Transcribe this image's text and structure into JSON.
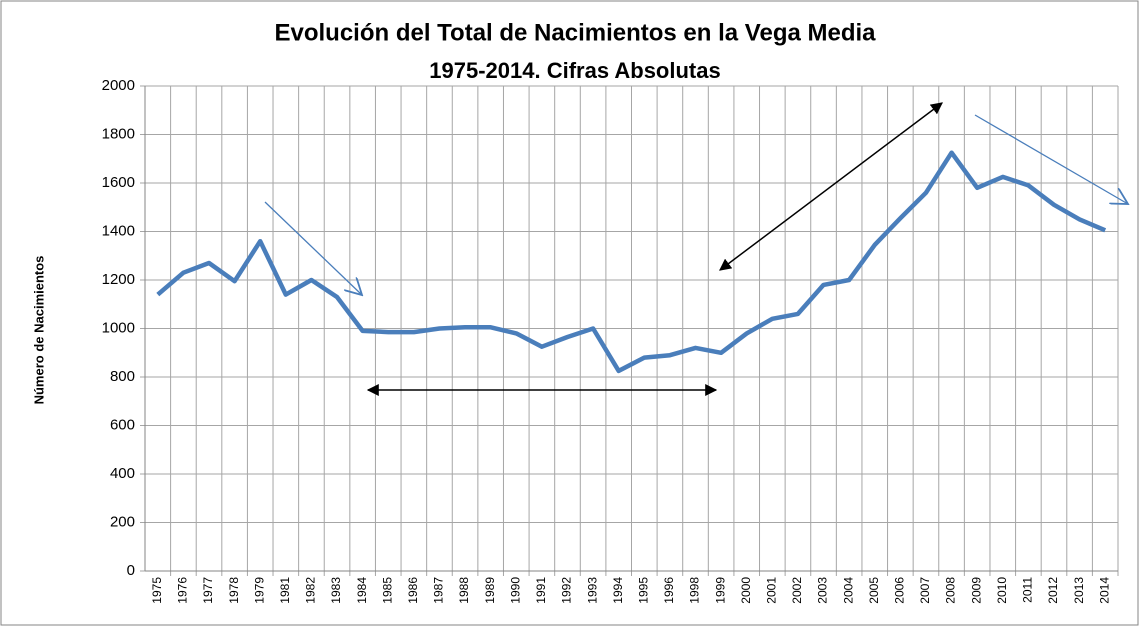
{
  "chart_data": {
    "type": "line",
    "title": "Evolución del Total de Nacimientos en la Vega Media",
    "subtitle": "1975-2014. Cifras Absolutas",
    "y_label": "Número de Nacimientos",
    "categories": [
      "1975",
      "1976",
      "1977",
      "1978",
      "1979",
      "1981",
      "1982",
      "1983",
      "1984",
      "1985",
      "1986",
      "1987",
      "1988",
      "1989",
      "1990",
      "1991",
      "1992",
      "1993",
      "1994",
      "1995",
      "1996",
      "1998",
      "1999",
      "2000",
      "2001",
      "2002",
      "2003",
      "2004",
      "2005",
      "2006",
      "2007",
      "2008",
      "2009",
      "2010",
      "2011",
      "2012",
      "2013",
      "2014"
    ],
    "values": [
      1140,
      1230,
      1270,
      1195,
      1360,
      1140,
      1200,
      1130,
      990,
      985,
      985,
      1000,
      1005,
      1005,
      980,
      925,
      965,
      1000,
      825,
      880,
      890,
      920,
      900,
      980,
      1040,
      1060,
      1180,
      1200,
      1345,
      1455,
      1560,
      1725,
      1580,
      1625,
      1590,
      1510,
      1450,
      1405
    ],
    "color": "#4a7ebb",
    "ylim": [
      0,
      2000
    ],
    "yticks": [
      0,
      200,
      400,
      600,
      800,
      1000,
      1200,
      1400,
      1600,
      1800,
      2000
    ],
    "grid": true
  }
}
